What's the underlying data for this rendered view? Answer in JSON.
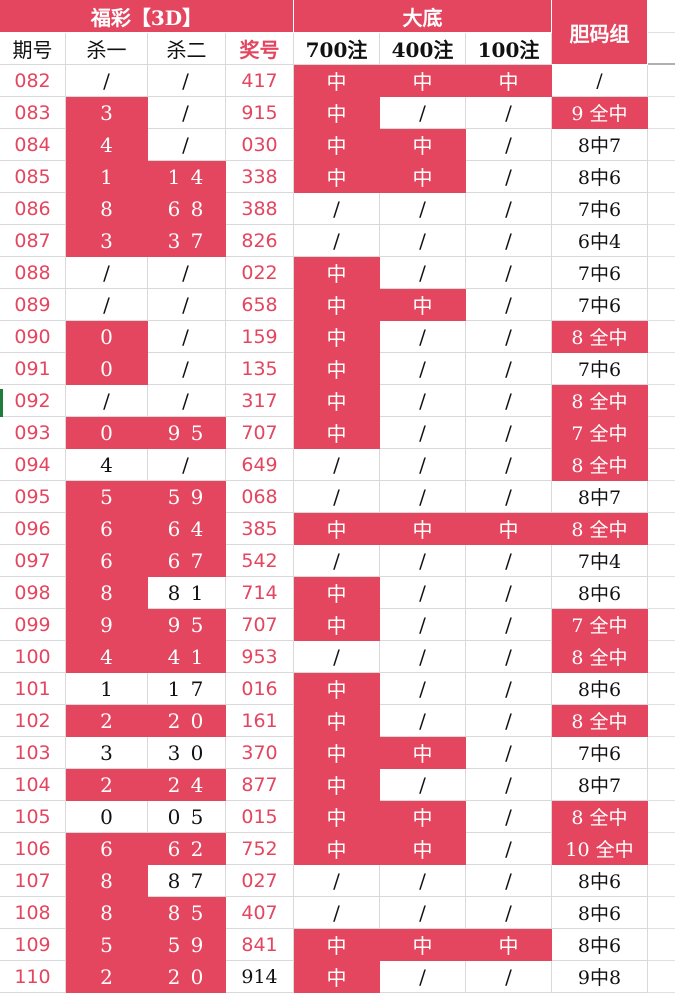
{
  "header": {
    "group_fucai": "福彩【3D】",
    "group_dadi": "大底",
    "group_danma": "胆码组",
    "col_period": "期号",
    "col_kill1": "杀一",
    "col_kill2": "杀二",
    "col_draw": "奖号",
    "col_700": "700注",
    "col_400": "400注",
    "col_100": "100注"
  },
  "colors": {
    "accent": "#e4465f",
    "grid": "#d9d9d9",
    "marker": "#1e7d3b"
  },
  "rows": [
    {
      "period": "082",
      "kill1": "/",
      "kill1_hit": false,
      "kill2": "/",
      "kill2_hit": false,
      "draw": "417",
      "draw_red": true,
      "d700": "中",
      "d700_hit": true,
      "d400": "中",
      "d400_hit": true,
      "d100": "中",
      "d100_hit": true,
      "dan": "/",
      "dan_hit": false
    },
    {
      "period": "083",
      "kill1": "3",
      "kill1_hit": true,
      "kill2": "/",
      "kill2_hit": false,
      "draw": "915",
      "draw_red": true,
      "d700": "中",
      "d700_hit": true,
      "d400": "/",
      "d400_hit": false,
      "d100": "/",
      "d100_hit": false,
      "dan": "9 全中",
      "dan_hit": true
    },
    {
      "period": "084",
      "kill1": "4",
      "kill1_hit": true,
      "kill2": "/",
      "kill2_hit": false,
      "draw": "030",
      "draw_red": true,
      "d700": "中",
      "d700_hit": true,
      "d400": "中",
      "d400_hit": true,
      "d100": "/",
      "d100_hit": false,
      "dan": "8中7",
      "dan_hit": false
    },
    {
      "period": "085",
      "kill1": "1",
      "kill1_hit": true,
      "kill2": "1 4",
      "kill2_hit": true,
      "draw": "338",
      "draw_red": true,
      "d700": "中",
      "d700_hit": true,
      "d400": "中",
      "d400_hit": true,
      "d100": "/",
      "d100_hit": false,
      "dan": "8中6",
      "dan_hit": false
    },
    {
      "period": "086",
      "kill1": "8",
      "kill1_hit": true,
      "kill2": "6 8",
      "kill2_hit": true,
      "draw": "388",
      "draw_red": true,
      "d700": "/",
      "d700_hit": false,
      "d400": "/",
      "d400_hit": false,
      "d100": "/",
      "d100_hit": false,
      "dan": "7中6",
      "dan_hit": false
    },
    {
      "period": "087",
      "kill1": "3",
      "kill1_hit": true,
      "kill2": "3 7",
      "kill2_hit": true,
      "draw": "826",
      "draw_red": true,
      "d700": "/",
      "d700_hit": false,
      "d400": "/",
      "d400_hit": false,
      "d100": "/",
      "d100_hit": false,
      "dan": "6中4",
      "dan_hit": false
    },
    {
      "period": "088",
      "kill1": "/",
      "kill1_hit": false,
      "kill2": "/",
      "kill2_hit": false,
      "draw": "022",
      "draw_red": true,
      "d700": "中",
      "d700_hit": true,
      "d400": "/",
      "d400_hit": false,
      "d100": "/",
      "d100_hit": false,
      "dan": "7中6",
      "dan_hit": false
    },
    {
      "period": "089",
      "kill1": "/",
      "kill1_hit": false,
      "kill2": "/",
      "kill2_hit": false,
      "draw": "658",
      "draw_red": true,
      "d700": "中",
      "d700_hit": true,
      "d400": "中",
      "d400_hit": true,
      "d100": "/",
      "d100_hit": false,
      "dan": "7中6",
      "dan_hit": false
    },
    {
      "period": "090",
      "kill1": "0",
      "kill1_hit": true,
      "kill2": "/",
      "kill2_hit": false,
      "draw": "159",
      "draw_red": true,
      "d700": "中",
      "d700_hit": true,
      "d400": "/",
      "d400_hit": false,
      "d100": "/",
      "d100_hit": false,
      "dan": "8 全中",
      "dan_hit": true
    },
    {
      "period": "091",
      "kill1": "0",
      "kill1_hit": true,
      "kill2": "/",
      "kill2_hit": false,
      "draw": "135",
      "draw_red": true,
      "d700": "中",
      "d700_hit": true,
      "d400": "/",
      "d400_hit": false,
      "d100": "/",
      "d100_hit": false,
      "dan": "7中6",
      "dan_hit": false
    },
    {
      "period": "092",
      "kill1": "/",
      "kill1_hit": false,
      "kill2": "/",
      "kill2_hit": false,
      "draw": "317",
      "draw_red": true,
      "d700": "中",
      "d700_hit": true,
      "d400": "/",
      "d400_hit": false,
      "d100": "/",
      "d100_hit": false,
      "dan": "8 全中",
      "dan_hit": true
    },
    {
      "period": "093",
      "kill1": "0",
      "kill1_hit": true,
      "kill2": "9 5",
      "kill2_hit": true,
      "draw": "707",
      "draw_red": true,
      "d700": "中",
      "d700_hit": true,
      "d400": "/",
      "d400_hit": false,
      "d100": "/",
      "d100_hit": false,
      "dan": "7 全中",
      "dan_hit": true
    },
    {
      "period": "094",
      "kill1": "4",
      "kill1_hit": false,
      "kill2": "/",
      "kill2_hit": false,
      "draw": "649",
      "draw_red": true,
      "d700": "/",
      "d700_hit": false,
      "d400": "/",
      "d400_hit": false,
      "d100": "/",
      "d100_hit": false,
      "dan": "8 全中",
      "dan_hit": true
    },
    {
      "period": "095",
      "kill1": "5",
      "kill1_hit": true,
      "kill2": "5 9",
      "kill2_hit": true,
      "draw": "068",
      "draw_red": true,
      "d700": "/",
      "d700_hit": false,
      "d400": "/",
      "d400_hit": false,
      "d100": "/",
      "d100_hit": false,
      "dan": "8中7",
      "dan_hit": false
    },
    {
      "period": "096",
      "kill1": "6",
      "kill1_hit": true,
      "kill2": "6 4",
      "kill2_hit": true,
      "draw": "385",
      "draw_red": true,
      "d700": "中",
      "d700_hit": true,
      "d400": "中",
      "d400_hit": true,
      "d100": "中",
      "d100_hit": true,
      "dan": "8 全中",
      "dan_hit": true
    },
    {
      "period": "097",
      "kill1": "6",
      "kill1_hit": true,
      "kill2": "6 7",
      "kill2_hit": true,
      "draw": "542",
      "draw_red": true,
      "d700": "/",
      "d700_hit": false,
      "d400": "/",
      "d400_hit": false,
      "d100": "/",
      "d100_hit": false,
      "dan": "7中4",
      "dan_hit": false
    },
    {
      "period": "098",
      "kill1": "8",
      "kill1_hit": true,
      "kill2": "8 1",
      "kill2_hit": false,
      "draw": "714",
      "draw_red": true,
      "d700": "中",
      "d700_hit": true,
      "d400": "/",
      "d400_hit": false,
      "d100": "/",
      "d100_hit": false,
      "dan": "8中6",
      "dan_hit": false
    },
    {
      "period": "099",
      "kill1": "9",
      "kill1_hit": true,
      "kill2": "9 5",
      "kill2_hit": true,
      "draw": "707",
      "draw_red": true,
      "d700": "中",
      "d700_hit": true,
      "d400": "/",
      "d400_hit": false,
      "d100": "/",
      "d100_hit": false,
      "dan": "7 全中",
      "dan_hit": true
    },
    {
      "period": "100",
      "kill1": "4",
      "kill1_hit": true,
      "kill2": "4 1",
      "kill2_hit": true,
      "draw": "953",
      "draw_red": true,
      "d700": "/",
      "d700_hit": false,
      "d400": "/",
      "d400_hit": false,
      "d100": "/",
      "d100_hit": false,
      "dan": "8 全中",
      "dan_hit": true
    },
    {
      "period": "101",
      "kill1": "1",
      "kill1_hit": false,
      "kill2": "1 7",
      "kill2_hit": false,
      "draw": "016",
      "draw_red": true,
      "d700": "中",
      "d700_hit": true,
      "d400": "/",
      "d400_hit": false,
      "d100": "/",
      "d100_hit": false,
      "dan": "8中6",
      "dan_hit": false
    },
    {
      "period": "102",
      "kill1": "2",
      "kill1_hit": true,
      "kill2": "2 0",
      "kill2_hit": true,
      "draw": "161",
      "draw_red": true,
      "d700": "中",
      "d700_hit": true,
      "d400": "/",
      "d400_hit": false,
      "d100": "/",
      "d100_hit": false,
      "dan": "8 全中",
      "dan_hit": true
    },
    {
      "period": "103",
      "kill1": "3",
      "kill1_hit": false,
      "kill2": "3 0",
      "kill2_hit": false,
      "draw": "370",
      "draw_red": true,
      "d700": "中",
      "d700_hit": true,
      "d400": "中",
      "d400_hit": true,
      "d100": "/",
      "d100_hit": false,
      "dan": "7中6",
      "dan_hit": false
    },
    {
      "period": "104",
      "kill1": "2",
      "kill1_hit": true,
      "kill2": "2 4",
      "kill2_hit": true,
      "draw": "877",
      "draw_red": true,
      "d700": "中",
      "d700_hit": true,
      "d400": "/",
      "d400_hit": false,
      "d100": "/",
      "d100_hit": false,
      "dan": "8中7",
      "dan_hit": false
    },
    {
      "period": "105",
      "kill1": "0",
      "kill1_hit": false,
      "kill2": "0 5",
      "kill2_hit": false,
      "draw": "015",
      "draw_red": true,
      "d700": "中",
      "d700_hit": true,
      "d400": "中",
      "d400_hit": true,
      "d100": "/",
      "d100_hit": false,
      "dan": "8 全中",
      "dan_hit": true
    },
    {
      "period": "106",
      "kill1": "6",
      "kill1_hit": true,
      "kill2": "6 2",
      "kill2_hit": true,
      "draw": "752",
      "draw_red": true,
      "d700": "中",
      "d700_hit": true,
      "d400": "中",
      "d400_hit": true,
      "d100": "/",
      "d100_hit": false,
      "dan": "10 全中",
      "dan_hit": true
    },
    {
      "period": "107",
      "kill1": "8",
      "kill1_hit": true,
      "kill2": "8 7",
      "kill2_hit": false,
      "draw": "027",
      "draw_red": true,
      "d700": "/",
      "d700_hit": false,
      "d400": "/",
      "d400_hit": false,
      "d100": "/",
      "d100_hit": false,
      "dan": "8中6",
      "dan_hit": false
    },
    {
      "period": "108",
      "kill1": "8",
      "kill1_hit": true,
      "kill2": "8 5",
      "kill2_hit": true,
      "draw": "407",
      "draw_red": true,
      "d700": "/",
      "d700_hit": false,
      "d400": "/",
      "d400_hit": false,
      "d100": "/",
      "d100_hit": false,
      "dan": "8中6",
      "dan_hit": false
    },
    {
      "period": "109",
      "kill1": "5",
      "kill1_hit": true,
      "kill2": "5 9",
      "kill2_hit": true,
      "draw": "841",
      "draw_red": true,
      "d700": "中",
      "d700_hit": true,
      "d400": "中",
      "d400_hit": true,
      "d100": "中",
      "d100_hit": true,
      "dan": "8中6",
      "dan_hit": false
    },
    {
      "period": "110",
      "kill1": "2",
      "kill1_hit": true,
      "kill2": "2 0",
      "kill2_hit": true,
      "draw": "914",
      "draw_red": false,
      "d700": "中",
      "d700_hit": true,
      "d400": "/",
      "d400_hit": false,
      "d100": "/",
      "d100_hit": false,
      "dan": "9中8",
      "dan_hit": false
    }
  ]
}
